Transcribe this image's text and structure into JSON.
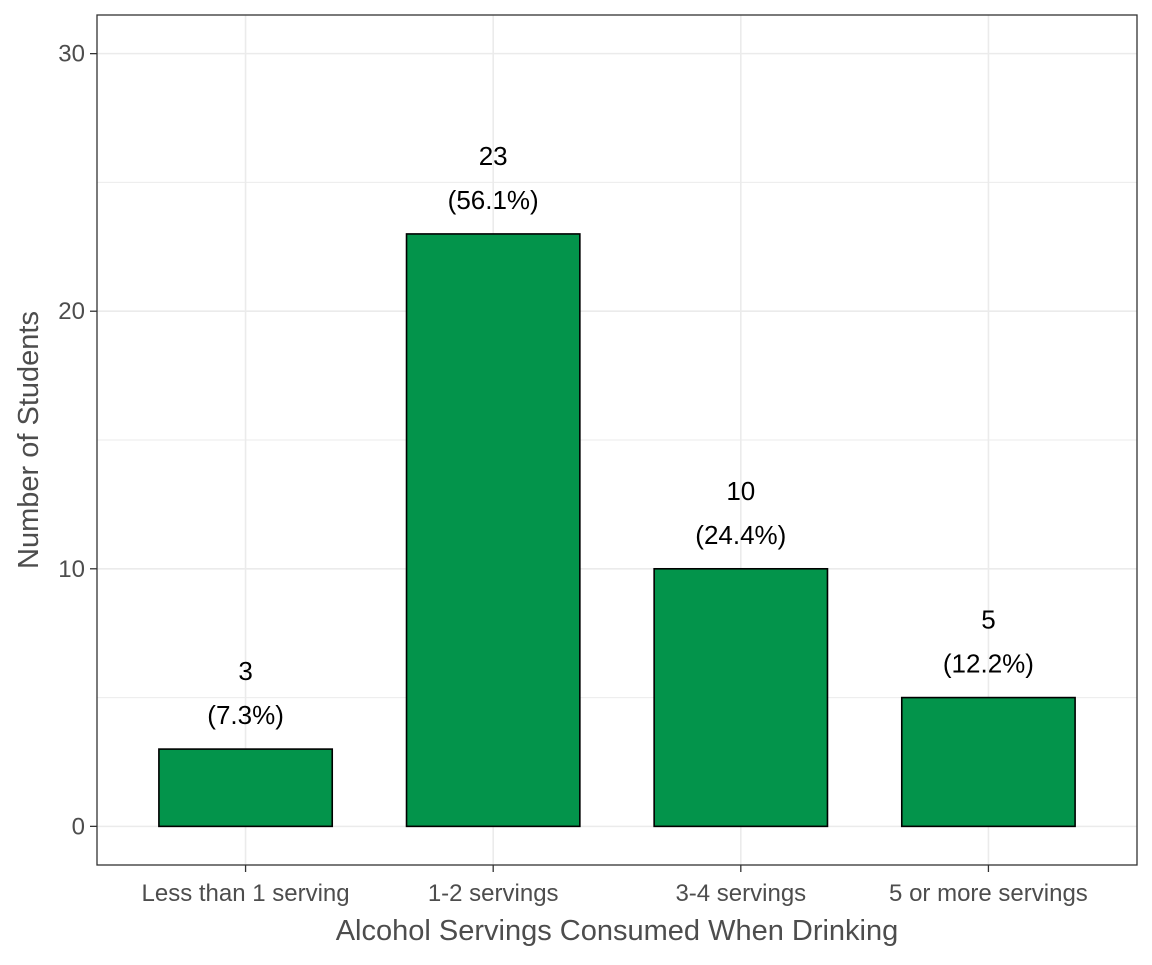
{
  "chart_data": {
    "type": "bar",
    "xlabel": "Alcohol Servings Consumed When Drinking",
    "ylabel": "Number of Students",
    "categories": [
      "Less than 1 serving",
      "1-2 servings",
      "3-4 servings",
      "5 or more servings"
    ],
    "values": [
      3,
      23,
      10,
      5
    ],
    "data_labels": [
      {
        "count": "3",
        "percent": "(7.3%)"
      },
      {
        "count": "23",
        "percent": "(56.1%)"
      },
      {
        "count": "10",
        "percent": "(24.4%)"
      },
      {
        "count": "5",
        "percent": "(12.2%)"
      }
    ],
    "y_ticks": [
      0,
      10,
      20,
      30
    ],
    "ylim": [
      -1.5,
      31.5
    ],
    "grid": true,
    "legend": "none",
    "colors": {
      "bar_fill": "#03944b",
      "bar_stroke": "#000000",
      "grid": "#ebebeb",
      "panel_border": "#333333",
      "axis_text": "#4d4d4d"
    }
  }
}
